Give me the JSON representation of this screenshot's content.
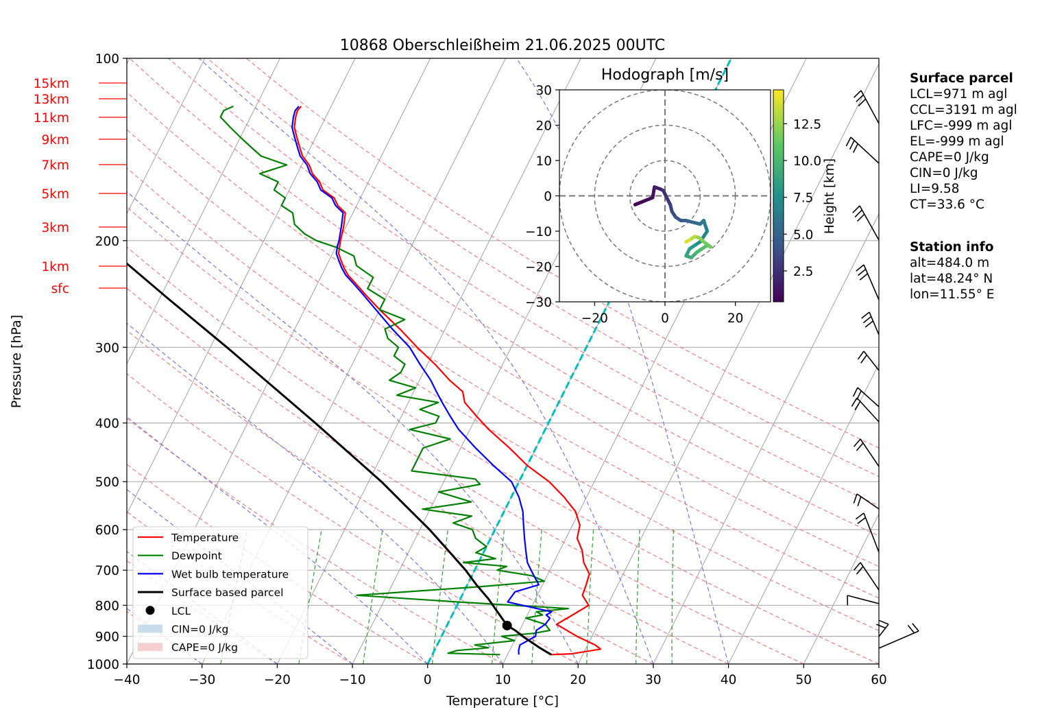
{
  "chart_data": {
    "type": "line",
    "subtype": "skew-t log-p",
    "title": "10868 Oberschleißheim 21.06.2025 00UTC",
    "xlabel": "Temperature [°C]",
    "ylabel": "Pressure [hPa]",
    "xlim": [
      -40,
      60
    ],
    "ylim": [
      1000,
      100
    ],
    "yscale": "log",
    "grid": true,
    "x_ticks": [
      "−40",
      "−30",
      "−20",
      "−10",
      "0",
      "10",
      "20",
      "30",
      "40",
      "50",
      "60"
    ],
    "y_ticks": [
      {
        "p": 100,
        "label": "100"
      },
      {
        "p": 200,
        "label": "200"
      },
      {
        "p": 300,
        "label": "300"
      },
      {
        "p": 400,
        "label": "400"
      },
      {
        "p": 500,
        "label": "500"
      },
      {
        "p": 600,
        "label": "600"
      },
      {
        "p": 700,
        "label": "700"
      },
      {
        "p": 800,
        "label": "800"
      },
      {
        "p": 900,
        "label": "900"
      },
      {
        "p": 1000,
        "label": "1000"
      }
    ],
    "height_labels": [
      {
        "p": 121,
        "label": "15km"
      },
      {
        "p": 144,
        "label": "13km"
      },
      {
        "p": 171,
        "label": "11km"
      },
      {
        "p": 203,
        "label": "9km"
      },
      {
        "p": 240,
        "label": "7km"
      },
      {
        "p": 282,
        "label": "5km"
      },
      {
        "p": 331,
        "label": "3km"
      },
      {
        "p": 388,
        "label": "1km"
      },
      {
        "p": 420,
        "label": "sfc"
      }
    ],
    "legend_position": "lower-left",
    "legend": [
      {
        "label": "Temperature",
        "color": "#ff0000",
        "kind": "line"
      },
      {
        "label": "Dewpoint",
        "color": "#008000",
        "kind": "line"
      },
      {
        "label": "Wet bulb temperature",
        "color": "#0000ff",
        "kind": "line"
      },
      {
        "label": "Surface based parcel",
        "color": "#000000",
        "kind": "line"
      },
      {
        "label": "LCL",
        "color": "#000000",
        "kind": "dot"
      },
      {
        "label": "CIN=0 J/kg",
        "color": "#c8dcec",
        "kind": "patch"
      },
      {
        "label": "CAPE=0 J/kg",
        "color": "#f6d0d0",
        "kind": "patch"
      }
    ],
    "series": [
      {
        "name": "Temperature",
        "color": "#ff0000",
        "p": [
          965,
          962,
          945,
          930,
          900,
          860,
          830,
          800,
          770,
          740,
          710,
          680,
          650,
          620,
          590,
          560,
          530,
          500,
          470,
          440,
          410,
          390,
          370,
          355,
          340,
          320,
          300,
          280,
          260,
          245,
          235,
          228,
          222,
          215,
          210,
          205,
          200,
          190,
          180,
          175,
          170,
          165,
          160,
          155,
          150,
          145,
          140,
          135,
          130,
          125,
          122,
          120
        ],
        "t": [
          15.8,
          18.5,
          22.0,
          21.0,
          18.0,
          14.5,
          16.0,
          17.5,
          16.0,
          15.8,
          15.5,
          14.0,
          13.0,
          11.5,
          11.0,
          9.5,
          7.0,
          4.0,
          0.0,
          -3.5,
          -7.5,
          -10.0,
          -12.5,
          -13.5,
          -16.0,
          -19.0,
          -22.5,
          -26.0,
          -30.0,
          -33.0,
          -35.0,
          -36.5,
          -37.5,
          -38.5,
          -39.2,
          -39.5,
          -39.8,
          -40.3,
          -41.0,
          -42.5,
          -43.5,
          -45.5,
          -46.5,
          -48.0,
          -49.0,
          -50.5,
          -51.5,
          -52.5,
          -53.5,
          -54.0,
          -54.2,
          -54.0
        ]
      },
      {
        "name": "Dewpoint",
        "color": "#008000",
        "p": [
          965,
          960,
          950,
          940,
          930,
          915,
          900,
          890,
          880,
          860,
          840,
          830,
          820,
          810,
          790,
          770,
          745,
          730,
          715,
          700,
          690,
          680,
          670,
          655,
          640,
          620,
          600,
          585,
          570,
          555,
          540,
          520,
          505,
          495,
          480,
          470,
          455,
          440,
          425,
          410,
          400,
          390,
          380,
          370,
          360,
          350,
          340,
          330,
          320,
          310,
          300,
          290,
          280,
          270,
          260,
          250,
          240,
          230,
          220,
          212,
          205,
          200,
          195,
          188,
          180,
          175,
          170,
          165,
          160,
          155,
          150,
          145,
          140,
          135,
          130,
          125,
          122,
          120
        ],
        "t": [
          9.0,
          2.0,
          3.0,
          7.0,
          5.0,
          10.0,
          8.0,
          12.0,
          14.0,
          13.0,
          10.0,
          12.0,
          11.0,
          15.0,
          0.0,
          -14.0,
          2.0,
          10.0,
          8.0,
          3.0,
          4.0,
          -2.0,
          2.0,
          -1.0,
          0.0,
          -2.0,
          -3.0,
          -6.0,
          -4.0,
          -11.0,
          -5.0,
          -10.0,
          -5.0,
          -6.0,
          -15.0,
          -15.0,
          -15.0,
          -15.0,
          -12.0,
          -18.0,
          -15.0,
          -15.0,
          -18.0,
          -16.0,
          -22.0,
          -20.0,
          -24.0,
          -23.0,
          -23.0,
          -25.0,
          -25.0,
          -27.0,
          -28.0,
          -26.0,
          -30.0,
          -30.0,
          -33.0,
          -33.0,
          -36.0,
          -37.0,
          -40.0,
          -43.0,
          -45.0,
          -47.0,
          -48.0,
          -50.0,
          -50.0,
          -52.0,
          -52.0,
          -55.0,
          -52.0,
          -56.0,
          -58.0,
          -60.0,
          -62.0,
          -64.0,
          -64.0,
          -63.0
        ]
      },
      {
        "name": "Wet bulb temperature",
        "color": "#0000ff",
        "p": [
          965,
          950,
          930,
          900,
          880,
          860,
          840,
          830,
          820,
          790,
          760,
          740,
          720,
          700,
          680,
          650,
          620,
          590,
          560,
          530,
          500,
          470,
          440,
          410,
          390,
          370,
          355,
          340,
          320,
          300,
          280,
          260,
          245,
          235,
          228,
          222,
          215,
          210,
          205,
          200,
          190,
          180,
          175,
          170,
          165,
          160,
          155,
          150,
          145,
          140,
          135,
          130,
          125,
          122,
          120
        ],
        "t": [
          11.5,
          11.2,
          11.0,
          12.5,
          12.2,
          13.0,
          13.2,
          12.5,
          13.0,
          6.5,
          6.8,
          9.5,
          8.5,
          7.5,
          6.5,
          5.5,
          4.5,
          3.5,
          2.5,
          1.0,
          -1.0,
          -4.5,
          -8.0,
          -11.5,
          -13.5,
          -15.5,
          -17.0,
          -18.5,
          -21.0,
          -23.5,
          -27.0,
          -30.5,
          -33.3,
          -35.3,
          -36.8,
          -37.8,
          -38.8,
          -39.5,
          -39.8,
          -40.0,
          -40.6,
          -41.3,
          -42.8,
          -43.8,
          -45.8,
          -46.8,
          -48.3,
          -49.3,
          -50.8,
          -51.8,
          -52.8,
          -53.8,
          -54.3,
          -54.5,
          -54.3
        ]
      },
      {
        "name": "Surface based parcel",
        "color": "#000000",
        "p": [
          965,
          940,
          920,
          900,
          880,
          864,
          820,
          780,
          740,
          700,
          650,
          600,
          550,
          500,
          450,
          400,
          350,
          300,
          250,
          200,
          180,
          160,
          140,
          125
        ],
        "t": [
          15.8,
          13.8,
          12.3,
          10.8,
          9.4,
          8.0,
          5.8,
          3.7,
          1.2,
          -1.2,
          -4.8,
          -8.7,
          -13.3,
          -18.3,
          -24.3,
          -31.0,
          -38.8,
          -47.8,
          -58.7,
          -71.8,
          -78.0,
          -85.0,
          -92.5,
          -99.0
        ]
      }
    ],
    "lcl": {
      "p": 864,
      "t": 8.0
    },
    "freezing_level_line": {
      "color": "#00bfbf",
      "style": "dashed"
    },
    "wind_barbs_present": true,
    "hodograph": {
      "title": "Hodograph [m/s]",
      "xlim": [
        -30,
        30
      ],
      "ylim": [
        -30,
        30
      ],
      "x_ticks": [
        "−20",
        "0",
        "20"
      ],
      "y_ticks": [
        "30",
        "20",
        "10",
        "0",
        "−10",
        "−20",
        "−30"
      ],
      "rings": [
        10,
        20,
        30
      ],
      "colorbar_label": "Height [km]",
      "colorbar_ticks": [
        "2.5",
        "5.0",
        "7.5",
        "10.0",
        "12.5"
      ],
      "colorbar_range": [
        0.4,
        14.8
      ],
      "u": [
        -8.5,
        -6.0,
        -3.5,
        -3.0,
        -1.5,
        -0.5,
        0.5,
        1.5,
        2.0,
        3.0,
        4.5,
        6.0,
        8.0,
        10.0,
        11.0,
        12.0,
        10.0,
        8.5,
        7.0,
        6.0,
        7.5,
        9.0,
        10.5,
        12.0,
        13.0,
        11.0,
        10.0,
        8.5,
        7.0,
        6.0
      ],
      "v": [
        -2.5,
        -1.5,
        -0.5,
        2.5,
        2.0,
        1.5,
        -0.5,
        -2.5,
        -4.5,
        -6.0,
        -7.0,
        -7.0,
        -7.5,
        -8.0,
        -7.0,
        -10.0,
        -13.0,
        -14.0,
        -15.0,
        -17.0,
        -17.5,
        -16.0,
        -15.0,
        -14.0,
        -14.5,
        -13.0,
        -12.0,
        -11.5,
        -12.5,
        -13.0
      ],
      "h": [
        0.4,
        0.8,
        1.2,
        1.6,
        2.0,
        2.4,
        2.8,
        3.2,
        3.6,
        4.0,
        4.5,
        5.0,
        5.5,
        6.0,
        6.5,
        7.0,
        7.5,
        8.0,
        8.5,
        9.0,
        9.5,
        10.0,
        10.5,
        11.0,
        11.5,
        12.0,
        12.5,
        13.2,
        14.0,
        14.8
      ]
    }
  },
  "surface_parcel": {
    "title": "Surface parcel",
    "lines": [
      "LCL=971 m agl",
      "CCL=3191 m agl",
      "LFC=-999 m agl",
      "EL=-999 m agl",
      "CAPE=0 J/kg",
      "CIN=0 J/kg",
      "LI=9.58",
      "CT=33.6 °C"
    ]
  },
  "station_info": {
    "title": "Station info",
    "lines": [
      "alt=484.0 m",
      "lat=48.24° N",
      "lon=11.55° E"
    ]
  }
}
